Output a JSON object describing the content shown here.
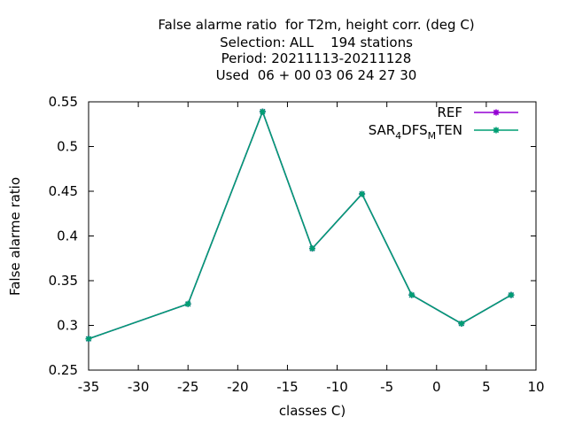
{
  "chart_data": {
    "type": "line",
    "title_lines": [
      "False alarme ratio  for T2m, height corr. (deg C)",
      "Selection: ALL    194 stations",
      "Period: 20211113-20211128",
      "Used  06 + 00 03 06 24 27 30"
    ],
    "xlabel": "classes C)",
    "ylabel": "False alarme ratio",
    "xlim": [
      -35,
      10
    ],
    "ylim": [
      0.25,
      0.55
    ],
    "xticks": [
      -35,
      -30,
      -25,
      -20,
      -15,
      -10,
      -5,
      0,
      5,
      10
    ],
    "yticks": [
      0.25,
      0.3,
      0.35,
      0.4,
      0.45,
      0.5,
      0.55
    ],
    "xtick_labels": [
      "-35",
      "-30",
      "-25",
      "-20",
      "-15",
      "-10",
      "-5",
      "0",
      "5",
      "10"
    ],
    "ytick_labels": [
      "0.25",
      "0.3",
      "0.35",
      "0.4",
      "0.45",
      "0.5",
      "0.55"
    ],
    "grid": false,
    "legend_position": "top-right",
    "x": [
      -35,
      -25,
      -17.5,
      -12.5,
      -7.5,
      -2.5,
      2.5,
      7.5
    ],
    "series": [
      {
        "name": "REF",
        "color": "#9400d3",
        "values": [
          0.285,
          0.324,
          0.539,
          0.386,
          0.447,
          0.334,
          0.302,
          0.334
        ]
      },
      {
        "name": "SAR4DFSMTEN",
        "color": "#009e73",
        "values": [
          0.285,
          0.324,
          0.539,
          0.386,
          0.447,
          0.334,
          0.302,
          0.334
        ]
      }
    ],
    "legend": [
      {
        "name": "REF",
        "color": "#9400d3"
      },
      {
        "name": "SAR4DFSMTEN",
        "color": "#009e73",
        "parts": [
          {
            "text": "SAR",
            "sub": false
          },
          {
            "text": "4",
            "sub": true
          },
          {
            "text": "D",
            "sub": false
          },
          {
            "text": "FS",
            "sub": false
          },
          {
            "text": "M",
            "sub": true
          },
          {
            "text": "TEN",
            "sub": false
          }
        ]
      }
    ]
  }
}
